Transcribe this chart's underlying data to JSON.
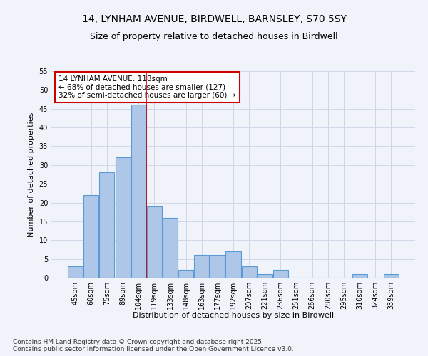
{
  "title_line1": "14, LYNHAM AVENUE, BIRDWELL, BARNSLEY, S70 5SY",
  "title_line2": "Size of property relative to detached houses in Birdwell",
  "xlabel": "Distribution of detached houses by size in Birdwell",
  "ylabel": "Number of detached properties",
  "categories": [
    "45sqm",
    "60sqm",
    "75sqm",
    "89sqm",
    "104sqm",
    "119sqm",
    "133sqm",
    "148sqm",
    "163sqm",
    "177sqm",
    "192sqm",
    "207sqm",
    "221sqm",
    "236sqm",
    "251sqm",
    "266sqm",
    "280sqm",
    "295sqm",
    "310sqm",
    "324sqm",
    "339sqm"
  ],
  "values": [
    3,
    22,
    28,
    32,
    46,
    19,
    16,
    2,
    6,
    6,
    7,
    3,
    1,
    2,
    0,
    0,
    0,
    0,
    1,
    0,
    1
  ],
  "bar_color": "#aec6e8",
  "bar_edge_color": "#5b9bd5",
  "grid_color": "#d0d8e8",
  "background_color": "#f0f4fa",
  "annotation_box_color": "#ffffff",
  "annotation_box_edge_color": "#cc0000",
  "annotation_text_line1": "14 LYNHAM AVENUE: 118sqm",
  "annotation_text_line2": "← 68% of detached houses are smaller (127)",
  "annotation_text_line3": "32% of semi-detached houses are larger (60) →",
  "vline_x_index": 4.5,
  "vline_color": "#cc0000",
  "ylim": [
    0,
    55
  ],
  "yticks": [
    0,
    5,
    10,
    15,
    20,
    25,
    30,
    35,
    40,
    45,
    50,
    55
  ],
  "footer_text": "Contains HM Land Registry data © Crown copyright and database right 2025.\nContains public sector information licensed under the Open Government Licence v3.0.",
  "title_fontsize": 10,
  "subtitle_fontsize": 9,
  "axis_label_fontsize": 8,
  "tick_fontsize": 7,
  "annotation_fontsize": 7.5,
  "footer_fontsize": 6.5
}
